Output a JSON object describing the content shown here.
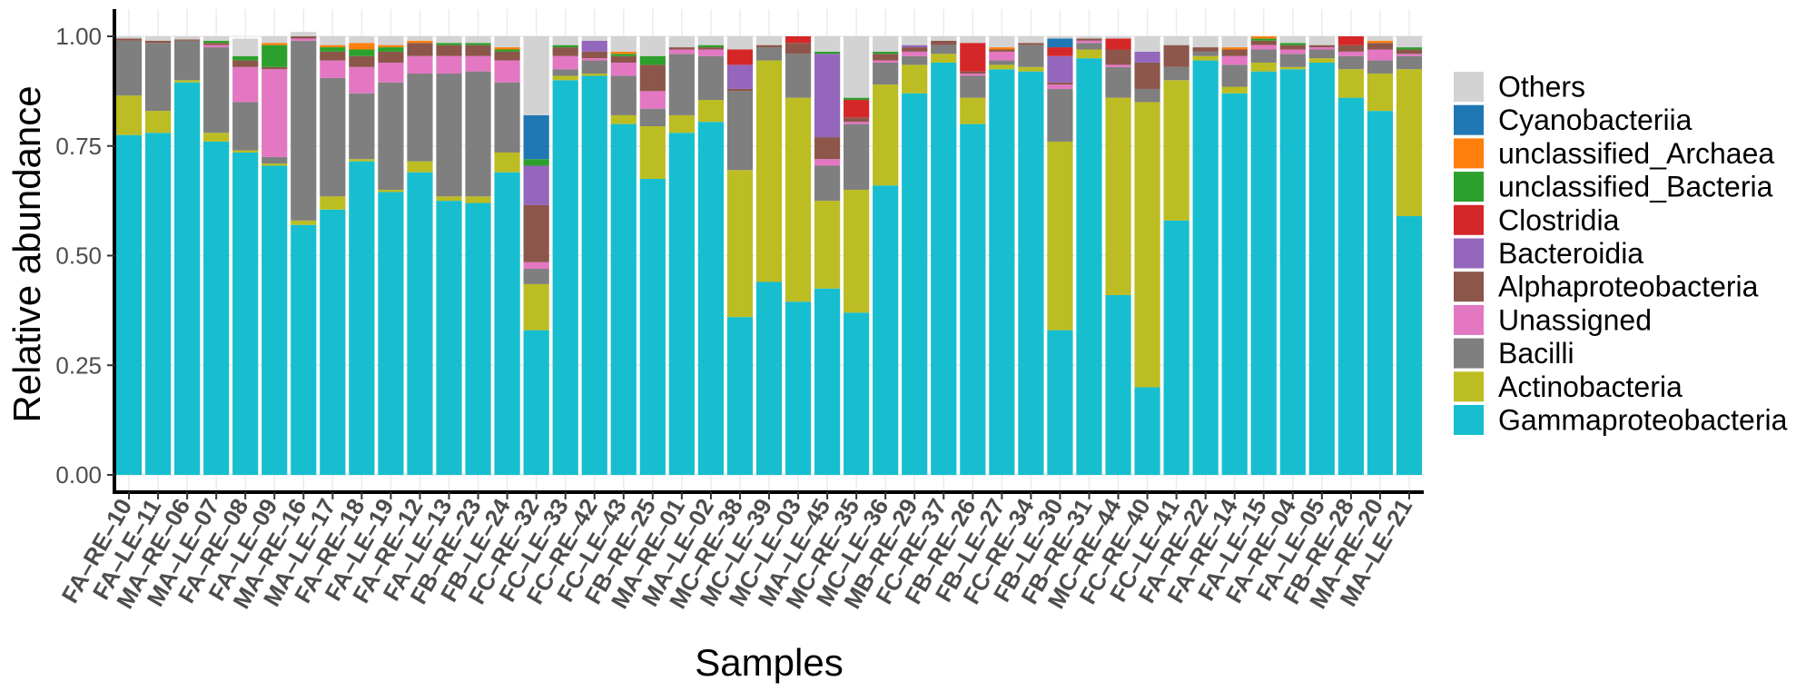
{
  "chart_data": {
    "type": "stacked-bar",
    "xlabel": "Samples",
    "ylabel": "Relative abundance",
    "ylim": [
      0,
      1
    ],
    "yticks": [
      "0.00",
      "0.25",
      "0.50",
      "0.75",
      "1.00"
    ],
    "ytick_values": [
      0,
      0.25,
      0.5,
      0.75,
      1.0
    ],
    "legend_position": "right",
    "categories": [
      "FA–RE–10",
      "FA–LE–11",
      "MA–RE–06",
      "MA–LE–07",
      "FA–RE–08",
      "FA–LE–09",
      "MA–RE–16",
      "MA–LE–17",
      "FA–RE–18",
      "FA–LE–19",
      "FA–RE–12",
      "FA–LE–13",
      "FB–RE–23",
      "FB–LE–24",
      "FC–RE–32",
      "FC–LE–33",
      "FC–RE–42",
      "FC–LE–43",
      "FB–RE–25",
      "MA–RE–01",
      "MA–LE–02",
      "MC–RE–38",
      "MC–LE–39",
      "MC–LE–03",
      "MA–LE–45",
      "MC–RE–35",
      "MC–LE–36",
      "MB–RE–29",
      "FC–RE–37",
      "FB–RE–26",
      "FB–LE–27",
      "FC–RE–34",
      "FB–LE–30",
      "FB–RE–31",
      "MC–RE–44",
      "FC–RE–40",
      "FC–LE–41",
      "FA–RE–22",
      "FA–RE–14",
      "FA–LE–15",
      "FA–RE–04",
      "FA–LE–05",
      "FB–RE–28",
      "MA–RE–20",
      "MA–LE–21"
    ],
    "series": [
      {
        "name": "Gammaproteobacteria",
        "color": "#17BECF",
        "values": [
          0.775,
          0.78,
          0.895,
          0.76,
          0.735,
          0.705,
          0.57,
          0.605,
          0.715,
          0.645,
          0.69,
          0.625,
          0.62,
          0.69,
          0.33,
          0.9,
          0.91,
          0.8,
          0.675,
          0.78,
          0.805,
          0.36,
          0.44,
          0.395,
          0.425,
          0.37,
          0.66,
          0.87,
          0.94,
          0.8,
          0.925,
          0.92,
          0.33,
          0.95,
          0.41,
          0.2,
          0.58,
          0.945,
          0.87,
          0.92,
          0.925,
          0.94,
          0.86,
          0.83,
          0.59
        ]
      },
      {
        "name": "Actinobacteria",
        "color": "#BCBD22",
        "values": [
          0.09,
          0.05,
          0.005,
          0.02,
          0.005,
          0.005,
          0.01,
          0.03,
          0.005,
          0.005,
          0.025,
          0.01,
          0.015,
          0.045,
          0.105,
          0.01,
          0.005,
          0.02,
          0.12,
          0.04,
          0.05,
          0.335,
          0.505,
          0.465,
          0.2,
          0.28,
          0.23,
          0.065,
          0.02,
          0.06,
          0.01,
          0.01,
          0.43,
          0.02,
          0.45,
          0.65,
          0.32,
          0.01,
          0.015,
          0.02,
          0.005,
          0.01,
          0.065,
          0.085,
          0.335
        ]
      },
      {
        "name": "Bacilli",
        "color": "#7F7F7F",
        "values": [
          0.125,
          0.155,
          0.09,
          0.195,
          0.11,
          0.015,
          0.41,
          0.27,
          0.15,
          0.245,
          0.2,
          0.28,
          0.285,
          0.16,
          0.035,
          0.015,
          0.03,
          0.09,
          0.04,
          0.14,
          0.1,
          0.18,
          0.03,
          0.1,
          0.08,
          0.15,
          0.05,
          0.02,
          0.02,
          0.05,
          0.01,
          0.05,
          0.12,
          0.015,
          0.07,
          0.03,
          0.03,
          0.01,
          0.05,
          0.03,
          0.03,
          0.02,
          0.03,
          0.03,
          0.03
        ]
      },
      {
        "name": "Unassigned",
        "color": "#E377C2",
        "values": [
          0.0,
          0.0,
          0.0,
          0.005,
          0.08,
          0.2,
          0.005,
          0.04,
          0.06,
          0.045,
          0.04,
          0.04,
          0.035,
          0.05,
          0.015,
          0.03,
          0.005,
          0.03,
          0.04,
          0.01,
          0.015,
          0.0,
          0.0,
          0.0,
          0.015,
          0.005,
          0.005,
          0.01,
          0.0,
          0.005,
          0.02,
          0.0,
          0.01,
          0.005,
          0.005,
          0.0,
          0.0,
          0.0,
          0.02,
          0.01,
          0.01,
          0.005,
          0.01,
          0.025,
          0.005
        ]
      },
      {
        "name": "Alphaproteobacteria",
        "color": "#8C564B",
        "values": [
          0.005,
          0.005,
          0.003,
          0.005,
          0.015,
          0.005,
          0.005,
          0.02,
          0.025,
          0.025,
          0.03,
          0.025,
          0.025,
          0.02,
          0.13,
          0.02,
          0.015,
          0.015,
          0.06,
          0.005,
          0.005,
          0.005,
          0.005,
          0.025,
          0.05,
          0.01,
          0.015,
          0.01,
          0.01,
          0.005,
          0.005,
          0.005,
          0.005,
          0.005,
          0.035,
          0.06,
          0.05,
          0.01,
          0.015,
          0.01,
          0.01,
          0.005,
          0.015,
          0.015,
          0.01
        ]
      },
      {
        "name": "Bacteroidia",
        "color": "#9467BD",
        "values": [
          0.0,
          0.0,
          0.0,
          0.0,
          0.0,
          0.0,
          0.0,
          0.0,
          0.0,
          0.0,
          0.0,
          0.0,
          0.0,
          0.0,
          0.09,
          0.0,
          0.025,
          0.0,
          0.0,
          0.0,
          0.0,
          0.055,
          0.0,
          0.0,
          0.19,
          0.0,
          0.0,
          0.005,
          0.0,
          0.0,
          0.0,
          0.0,
          0.06,
          0.0,
          0.0,
          0.025,
          0.0,
          0.0,
          0.0,
          0.0,
          0.0,
          0.0,
          0.0,
          0.0,
          0.0
        ]
      },
      {
        "name": "Clostridia",
        "color": "#D62728",
        "values": [
          0.0,
          0.0,
          0.0,
          0.0,
          0.0,
          0.0,
          0.0,
          0.0,
          0.0,
          0.0,
          0.0,
          0.0,
          0.0,
          0.0,
          0.0,
          0.0,
          0.0,
          0.0,
          0.0,
          0.0,
          0.0,
          0.035,
          0.0,
          0.015,
          0.0,
          0.04,
          0.0,
          0.0,
          0.0,
          0.065,
          0.0,
          0.0,
          0.02,
          0.0,
          0.025,
          0.0,
          0.0,
          0.0,
          0.0,
          0.0,
          0.0,
          0.0,
          0.02,
          0.0,
          0.0
        ]
      },
      {
        "name": "unclassified_Bacteria",
        "color": "#2CA02C",
        "values": [
          0.0,
          0.0,
          0.0,
          0.005,
          0.01,
          0.05,
          0.0,
          0.01,
          0.015,
          0.01,
          0.0,
          0.005,
          0.005,
          0.005,
          0.015,
          0.005,
          0.0,
          0.005,
          0.02,
          0.0,
          0.005,
          0.0,
          0.0,
          0.0,
          0.005,
          0.005,
          0.005,
          0.0,
          0.0,
          0.0,
          0.0,
          0.0,
          0.0,
          0.0,
          0.0,
          0.0,
          0.0,
          0.0,
          0.0,
          0.005,
          0.005,
          0.0,
          0.0,
          0.0,
          0.005
        ]
      },
      {
        "name": "unclassified_Archaea",
        "color": "#FF7F0E",
        "values": [
          0.0,
          0.0,
          0.0,
          0.0,
          0.0,
          0.005,
          0.0,
          0.005,
          0.015,
          0.005,
          0.005,
          0.0,
          0.0,
          0.005,
          0.0,
          0.0,
          0.0,
          0.005,
          0.0,
          0.0,
          0.0,
          0.0,
          0.0,
          0.0,
          0.0,
          0.0,
          0.0,
          0.0,
          0.0,
          0.0,
          0.005,
          0.0,
          0.0,
          0.0,
          0.0,
          0.0,
          0.0,
          0.0,
          0.005,
          0.005,
          0.0,
          0.0,
          0.0,
          0.005,
          0.0
        ]
      },
      {
        "name": "Cyanobacteriia",
        "color": "#1F77B4",
        "values": [
          0.0,
          0.0,
          0.0,
          0.0,
          0.0,
          0.0,
          0.0,
          0.0,
          0.0,
          0.0,
          0.0,
          0.0,
          0.0,
          0.0,
          0.1,
          0.0,
          0.0,
          0.0,
          0.0,
          0.0,
          0.0,
          0.0,
          0.0,
          0.0,
          0.0,
          0.0,
          0.0,
          0.0,
          0.0,
          0.0,
          0.0,
          0.0,
          0.02,
          0.0,
          0.0,
          0.0,
          0.0,
          0.0,
          0.0,
          0.0,
          0.0,
          0.0,
          0.0,
          0.0,
          0.0
        ]
      },
      {
        "name": "Others",
        "color": "#D3D3D3",
        "values": [
          0.005,
          0.01,
          0.007,
          0.01,
          0.04,
          0.015,
          0.01,
          0.02,
          0.015,
          0.02,
          0.01,
          0.015,
          0.015,
          0.025,
          0.18,
          0.02,
          0.01,
          0.035,
          0.045,
          0.025,
          0.02,
          0.03,
          0.02,
          0.0,
          0.035,
          0.14,
          0.035,
          0.02,
          0.01,
          0.015,
          0.025,
          0.015,
          0.005,
          0.005,
          0.005,
          0.035,
          0.02,
          0.025,
          0.025,
          0.0,
          0.015,
          0.02,
          0.0,
          0.01,
          0.025
        ]
      }
    ],
    "legend": [
      "Others",
      "Cyanobacteriia",
      "unclassified_Archaea",
      "unclassified_Bacteria",
      "Clostridia",
      "Bacteroidia",
      "Alphaproteobacteria",
      "Unassigned",
      "Bacilli",
      "Actinobacteria",
      "Gammaproteobacteria"
    ]
  }
}
